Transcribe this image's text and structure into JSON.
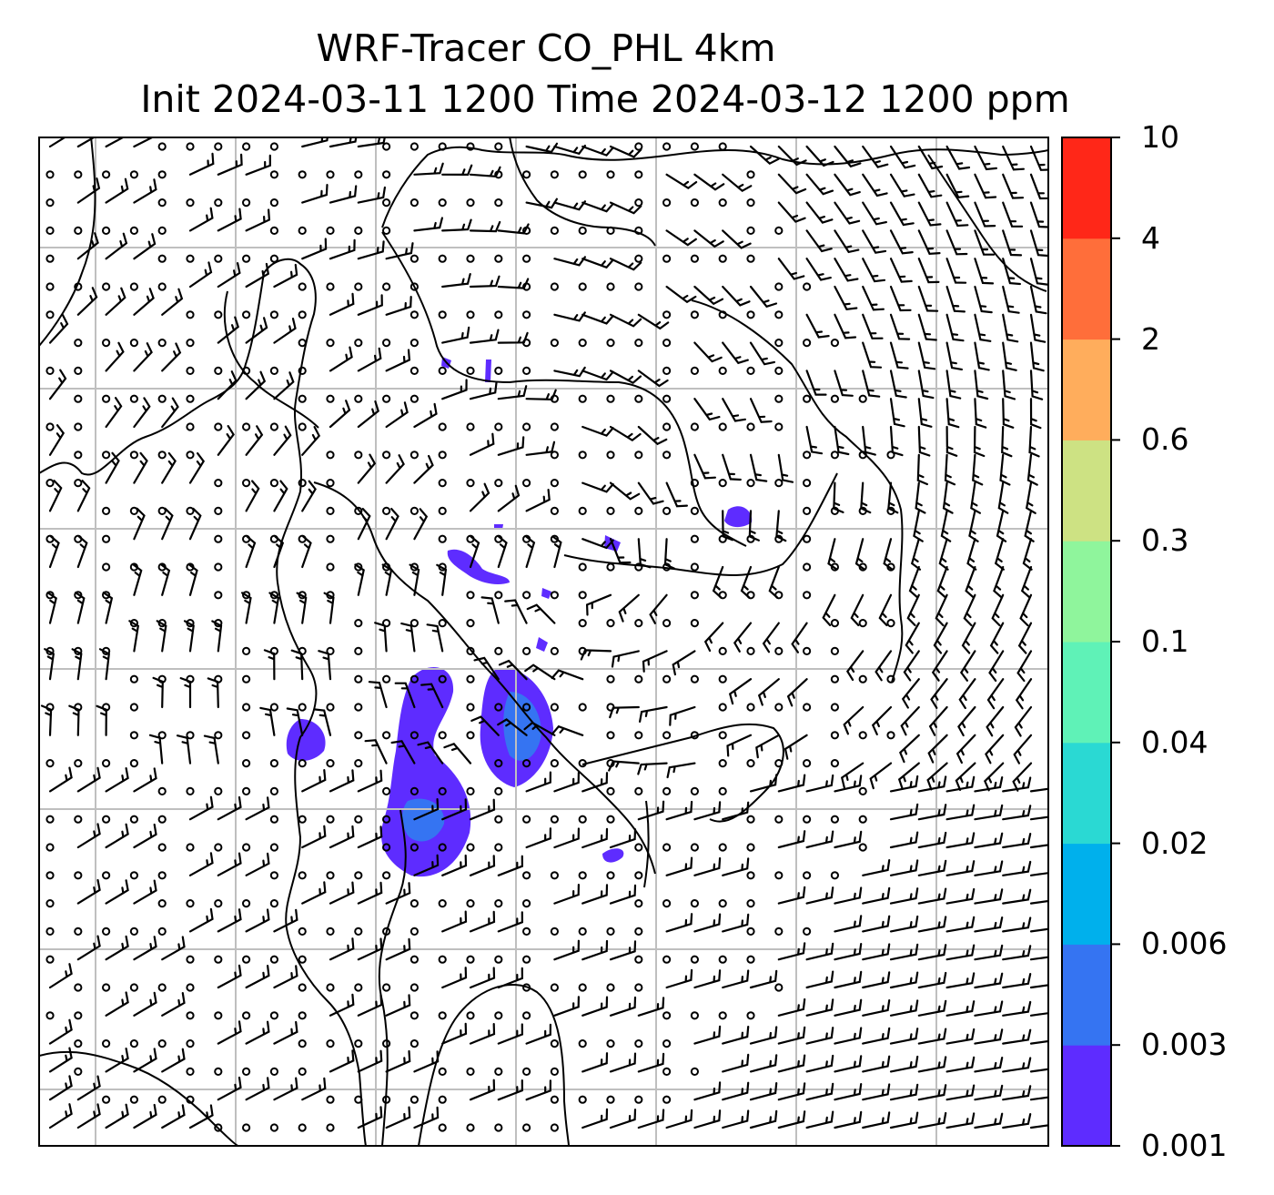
{
  "title": {
    "line1": "WRF-Tracer CO_PHL 4km",
    "line2": "Init 2024-03-11 1200 Time 2024-03-12 1200 ppm"
  },
  "colorbar": {
    "levels": [
      {
        "label": "0.001",
        "color": "#5e2cff"
      },
      {
        "label": "0.003",
        "color": "#3574f2"
      },
      {
        "label": "0.006",
        "color": "#00b0ec"
      },
      {
        "label": "0.02",
        "color": "#2ad9d3"
      },
      {
        "label": "0.04",
        "color": "#5ff2b7"
      },
      {
        "label": "0.1",
        "color": "#8ff59c"
      },
      {
        "label": "0.3",
        "color": "#cde283"
      },
      {
        "label": "0.6",
        "color": "#ffad5c"
      },
      {
        "label": "2",
        "color": "#ff6e3a"
      },
      {
        "label": "4",
        "color": "#ff2718"
      },
      {
        "label": "10",
        "color": ""
      }
    ]
  },
  "map": {
    "variable": "CO_PHL tracer",
    "units": "ppm",
    "overlays": [
      "wind-barbs",
      "state-and-coast-boundaries",
      "lat-lon-gridlines",
      "calm-wind-circles"
    ],
    "gridline_color": "#bfbfbf",
    "barb_color": "#000000"
  }
}
